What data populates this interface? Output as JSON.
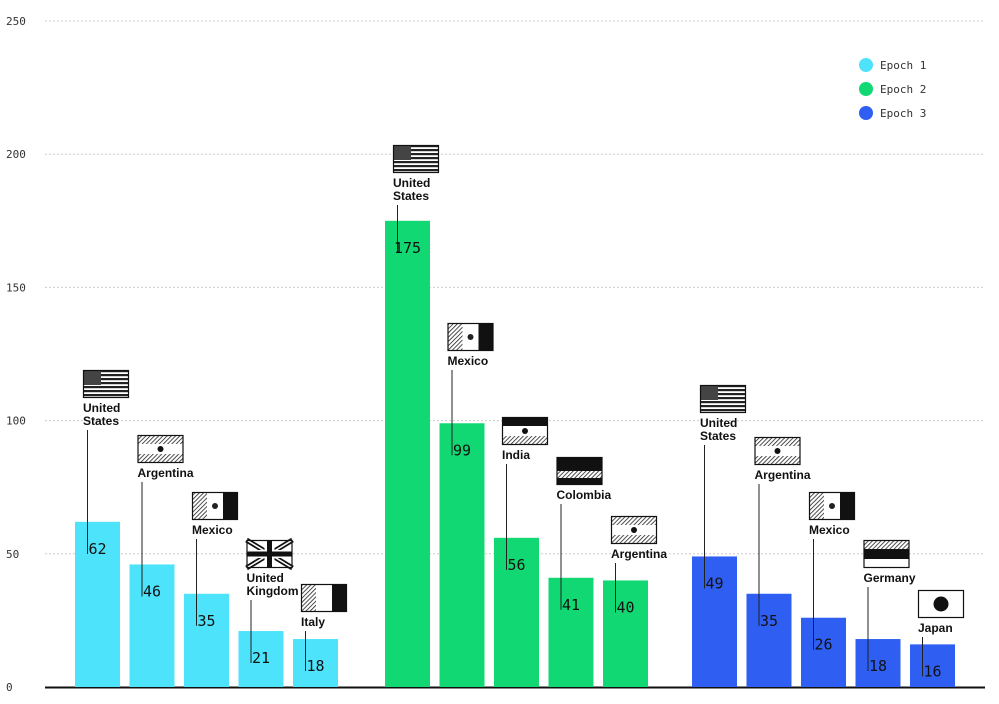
{
  "chart_data": {
    "type": "bar",
    "title": "",
    "xlabel": "",
    "ylabel": "",
    "ylim": [
      0,
      250
    ],
    "yticks": [
      0,
      50,
      100,
      150,
      200,
      250
    ],
    "grid": true,
    "legend_position": "top-right",
    "series": [
      {
        "name": "Epoch 1",
        "color": "#4de3fb",
        "categories": [
          "United States",
          "Argentina",
          "Mexico",
          "United Kingdom",
          "Italy"
        ],
        "flags": [
          "us",
          "argentina",
          "mexico",
          "uk",
          "italy"
        ],
        "values": [
          62,
          46,
          35,
          21,
          18
        ]
      },
      {
        "name": "Epoch 2",
        "color": "#12d873",
        "categories": [
          "United States",
          "Mexico",
          "India",
          "Colombia",
          "Argentina"
        ],
        "flags": [
          "us",
          "mexico",
          "india",
          "colombia",
          "argentina"
        ],
        "values": [
          175,
          99,
          56,
          41,
          40
        ]
      },
      {
        "name": "Epoch 3",
        "color": "#2f5ef2",
        "categories": [
          "United States",
          "Argentina",
          "Mexico",
          "Germany",
          "Japan"
        ],
        "flags": [
          "us",
          "argentina",
          "mexico",
          "germany",
          "japan"
        ],
        "values": [
          49,
          35,
          26,
          18,
          16
        ]
      }
    ]
  }
}
